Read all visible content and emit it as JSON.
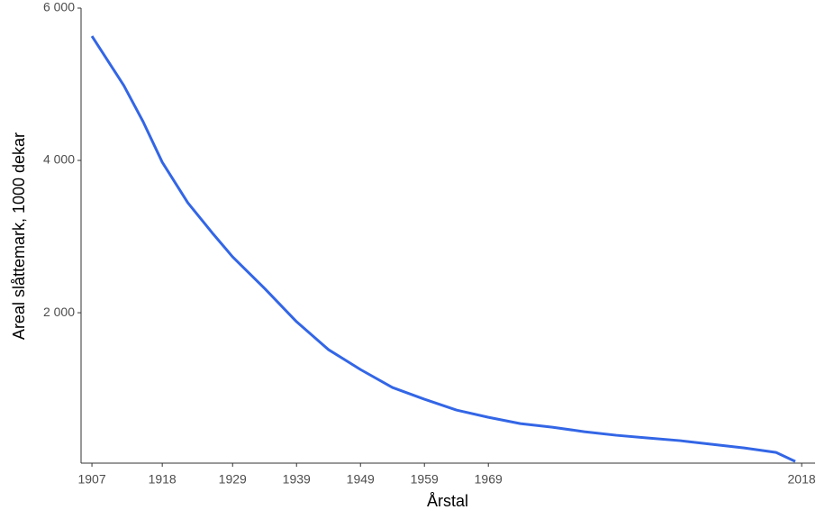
{
  "chart_data": {
    "type": "line",
    "x_label": "Årstal",
    "y_label": "Areal slåttemark, 1000 dekar",
    "x": [
      1907,
      1912,
      1915,
      1918,
      1922,
      1926,
      1929,
      1934,
      1939,
      1944,
      1949,
      1954,
      1959,
      1964,
      1969,
      1974,
      1979,
      1984,
      1989,
      1994,
      1999,
      2004,
      2009,
      2014,
      2017
    ],
    "series": [
      {
        "color": "#3366e6",
        "values": [
          5633,
          4982,
          4509,
          3976,
          3444,
          3030,
          2734,
          2320,
          1882,
          1515,
          1254,
          1018,
          864,
          722,
          627,
          544,
          497,
          438,
          391,
          355,
          320,
          272,
          225,
          166,
          47
        ]
      }
    ],
    "xlim": [
      1905.3,
      2020.1
    ],
    "xticks": [
      1907,
      1918,
      1929,
      1939,
      1949,
      1959,
      1969,
      2018
    ],
    "ylim": [
      25,
      6000
    ],
    "yticks": [
      {
        "value": 2000,
        "label": "2 000"
      },
      {
        "value": 4000,
        "label": "4 000"
      },
      {
        "value": 6000,
        "label": "6 000"
      }
    ]
  }
}
